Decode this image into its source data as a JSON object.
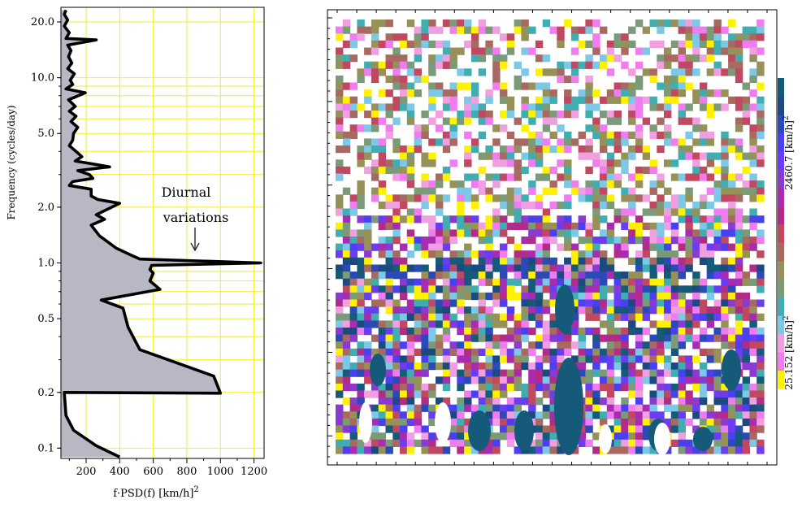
{
  "chart_data": [
    {
      "type": "area",
      "xlabel": "f·PSD(f) [km/h]",
      "xlabel_sup": "2",
      "ylabel": "Frequency (cycles/day)",
      "xscale": "linear",
      "yscale": "log",
      "xlim": [
        50,
        1260
      ],
      "ylim": [
        0.088,
        24
      ],
      "x_ticks": [
        200,
        400,
        600,
        800,
        1000,
        1200
      ],
      "x_tick_labels": [
        "200",
        "400",
        "600",
        "800",
        "1000",
        "1200"
      ],
      "y_ticks": [
        0.1,
        0.2,
        0.5,
        1.0,
        2.0,
        5.0,
        10.0,
        20.0
      ],
      "y_tick_labels": [
        "0.1",
        "0.2",
        "0.5",
        "1.0",
        "2.0",
        "5.0",
        "10.0",
        "20.0"
      ],
      "grid": true,
      "fill_color": "#b8b8c4",
      "line_color": "#000000",
      "grid_color": "#f2ee2a",
      "annotation": {
        "lines": [
          "Diurnal",
          "variations"
        ],
        "target": {
          "x": 1100,
          "y": 1.07
        }
      },
      "points": [
        [
          400,
          0.0895
        ],
        [
          260,
          0.103
        ],
        [
          125,
          0.125
        ],
        [
          80,
          0.15
        ],
        [
          70,
          0.2
        ],
        [
          1000,
          0.198
        ],
        [
          960,
          0.245
        ],
        [
          520,
          0.34
        ],
        [
          450,
          0.45
        ],
        [
          420,
          0.57
        ],
        [
          290,
          0.63
        ],
        [
          640,
          0.72
        ],
        [
          580,
          0.8
        ],
        [
          600,
          0.88
        ],
        [
          580,
          0.92
        ],
        [
          590,
          0.97
        ],
        [
          1240,
          1.0
        ],
        [
          520,
          1.05
        ],
        [
          470,
          1.1
        ],
        [
          380,
          1.2
        ],
        [
          280,
          1.4
        ],
        [
          230,
          1.6
        ],
        [
          310,
          1.72
        ],
        [
          260,
          1.82
        ],
        [
          400,
          2.1
        ],
        [
          270,
          2.2
        ],
        [
          230,
          2.3
        ],
        [
          230,
          2.5
        ],
        [
          100,
          2.62
        ],
        [
          120,
          2.75
        ],
        [
          240,
          2.86
        ],
        [
          220,
          3.0
        ],
        [
          150,
          3.15
        ],
        [
          340,
          3.3
        ],
        [
          260,
          3.4
        ],
        [
          135,
          3.55
        ],
        [
          175,
          3.75
        ],
        [
          140,
          4.0
        ],
        [
          100,
          4.3
        ],
        [
          120,
          4.6
        ],
        [
          125,
          5.0
        ],
        [
          150,
          5.4
        ],
        [
          110,
          5.8
        ],
        [
          140,
          6.2
        ],
        [
          100,
          6.6
        ],
        [
          135,
          7.0
        ],
        [
          95,
          7.6
        ],
        [
          195,
          8.3
        ],
        [
          80,
          8.7
        ],
        [
          120,
          9.2
        ],
        [
          105,
          9.7
        ],
        [
          130,
          10.5
        ],
        [
          90,
          11.2
        ],
        [
          115,
          12.0
        ],
        [
          95,
          13.0
        ],
        [
          110,
          14.0
        ],
        [
          90,
          15.0
        ],
        [
          260,
          16.0
        ],
        [
          80,
          16.3
        ],
        [
          100,
          17.5
        ],
        [
          70,
          19.0
        ],
        [
          90,
          20.5
        ],
        [
          70,
          22.0
        ],
        [
          80,
          23.2
        ]
      ]
    },
    {
      "type": "heatmap",
      "colorbar_labels": [
        {
          "text": "2460.7 [km/h]",
          "sup": "2"
        },
        {
          "text": "25.152 [km/h]",
          "sup": "2"
        }
      ],
      "colorbar_colors": [
        "#fff200",
        "#f07df0",
        "#f0a0e0",
        "#7dc8e6",
        "#40aeb0",
        "#7b9a78",
        "#969158",
        "#a86a60",
        "#c04860",
        "#b02c86",
        "#a82cb0",
        "#8a3ad0",
        "#6a3cf4",
        "#4a40f0",
        "#2a4ab8",
        "#1a4a80",
        "#155a78"
      ],
      "x_range": [
        0,
        1
      ],
      "y_range": [
        0.088,
        24
      ],
      "yscale": "log"
    }
  ]
}
